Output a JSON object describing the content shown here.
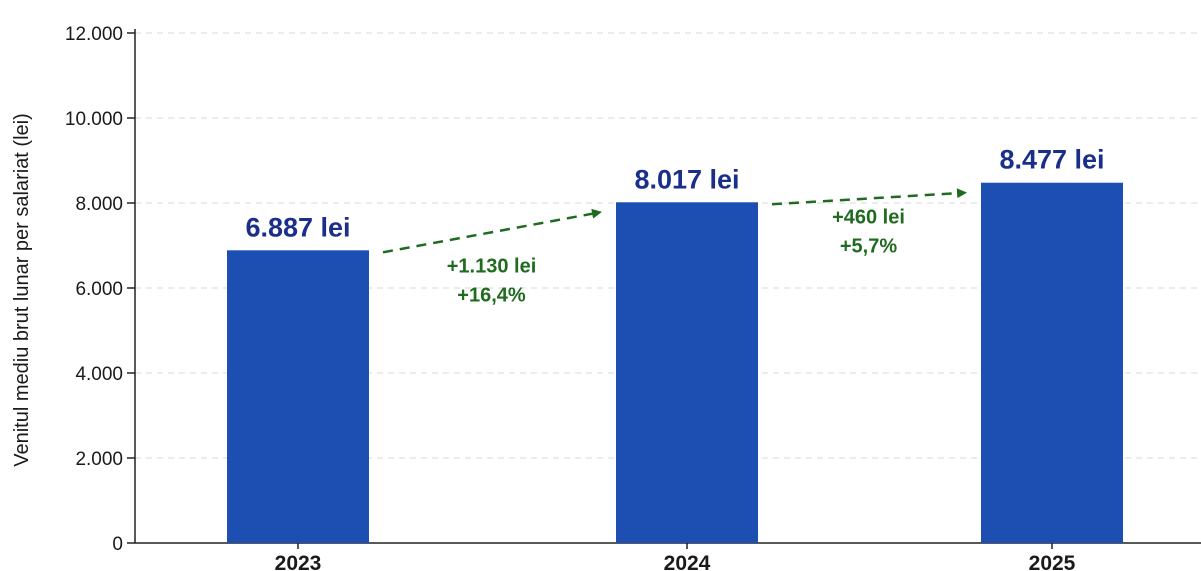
{
  "chart_data": {
    "type": "bar",
    "categories": [
      "2023",
      "2024",
      "2025"
    ],
    "values": [
      6887,
      8017,
      8477
    ],
    "value_labels": [
      "6.887 lei",
      "8.017 lei",
      "8.477 lei"
    ],
    "ylabel": "Venitul mediu brut lunar per salariat (lei)",
    "ylim": [
      0,
      12000
    ],
    "yticks": [
      0,
      2000,
      4000,
      6000,
      8000,
      10000,
      12000
    ],
    "ytick_labels": [
      "0",
      "2.000",
      "4.000",
      "6.000",
      "8.000",
      "10.000",
      "12.000"
    ],
    "grid": true,
    "annotations": [
      {
        "from": "2023",
        "to": "2024",
        "lines": [
          "+1.130 lei",
          "+16,4%"
        ]
      },
      {
        "from": "2024",
        "to": "2025",
        "lines": [
          "+460 lei",
          "+5,7%"
        ]
      }
    ]
  },
  "colors": {
    "bar": "#1d4fb3",
    "value_label": "#1a2f8a",
    "delta": "#1f6b1f",
    "grid": "#d9d9d9",
    "axis": "#222222"
  }
}
